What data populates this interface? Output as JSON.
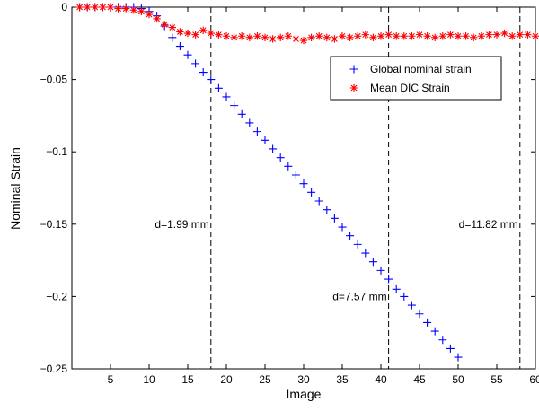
{
  "chart_data": {
    "type": "scatter",
    "title": "",
    "xlabel": "Image",
    "ylabel": "Nominal Strain",
    "xlim": [
      0,
      60
    ],
    "ylim": [
      -0.25,
      0
    ],
    "xticks": [
      5,
      10,
      15,
      20,
      25,
      30,
      35,
      40,
      45,
      50,
      55,
      60
    ],
    "xtick_labels": [
      "5",
      "10",
      "15",
      "20",
      "25",
      "30",
      "35",
      "40",
      "45",
      "50",
      "55",
      "60"
    ],
    "yticks": [
      0,
      -0.05,
      -0.1,
      -0.15,
      -0.2,
      -0.25
    ],
    "ytick_labels": [
      "0",
      "−0.05",
      "−0.1",
      "−0.15",
      "−0.2",
      "−0.25"
    ],
    "grid": false,
    "legend_position": "top-right",
    "series": [
      {
        "name": "Global nominal strain",
        "marker": "plus",
        "color": "#0000ff",
        "x": [
          1,
          2,
          3,
          4,
          5,
          6,
          7,
          8,
          9,
          10,
          11,
          12,
          13,
          14,
          15,
          16,
          17,
          18,
          19,
          20,
          21,
          22,
          23,
          24,
          25,
          26,
          27,
          28,
          29,
          30,
          31,
          32,
          33,
          34,
          35,
          36,
          37,
          38,
          39,
          40,
          41,
          42,
          43,
          44,
          45,
          46,
          47,
          48,
          49,
          50
        ],
        "y": [
          0,
          0,
          0,
          0,
          0,
          0,
          0,
          0,
          -0.001,
          -0.003,
          -0.006,
          -0.013,
          -0.021,
          -0.027,
          -0.033,
          -0.039,
          -0.045,
          -0.05,
          -0.056,
          -0.062,
          -0.068,
          -0.074,
          -0.08,
          -0.086,
          -0.092,
          -0.098,
          -0.104,
          -0.11,
          -0.116,
          -0.122,
          -0.128,
          -0.134,
          -0.14,
          -0.146,
          -0.152,
          -0.158,
          -0.164,
          -0.17,
          -0.176,
          -0.182,
          -0.188,
          -0.195,
          -0.2,
          -0.206,
          -0.212,
          -0.218,
          -0.224,
          -0.23,
          -0.236,
          -0.242
        ]
      },
      {
        "name": "Mean DIC Strain",
        "marker": "asterisk",
        "color": "#ff0000",
        "x": [
          1,
          2,
          3,
          4,
          5,
          6,
          7,
          8,
          9,
          10,
          11,
          12,
          13,
          14,
          15,
          16,
          17,
          18,
          19,
          20,
          21,
          22,
          23,
          24,
          25,
          26,
          27,
          28,
          29,
          30,
          31,
          32,
          33,
          34,
          35,
          36,
          37,
          38,
          39,
          40,
          41,
          42,
          43,
          44,
          45,
          46,
          47,
          48,
          49,
          50,
          51,
          52,
          53,
          54,
          55,
          56,
          57,
          58,
          59,
          60
        ],
        "y": [
          0,
          0,
          0,
          0,
          0,
          -0.001,
          -0.001,
          -0.002,
          -0.003,
          -0.005,
          -0.008,
          -0.012,
          -0.014,
          -0.017,
          -0.018,
          -0.019,
          -0.016,
          -0.018,
          -0.019,
          -0.02,
          -0.021,
          -0.02,
          -0.021,
          -0.02,
          -0.021,
          -0.022,
          -0.021,
          -0.02,
          -0.022,
          -0.023,
          -0.021,
          -0.02,
          -0.021,
          -0.022,
          -0.02,
          -0.021,
          -0.02,
          -0.019,
          -0.021,
          -0.02,
          -0.019,
          -0.02,
          -0.02,
          -0.02,
          -0.019,
          -0.02,
          -0.021,
          -0.02,
          -0.019,
          -0.02,
          -0.02,
          -0.021,
          -0.02,
          -0.019,
          -0.019,
          -0.018,
          -0.02,
          -0.019,
          -0.019,
          -0.02
        ]
      }
    ],
    "vlines": [
      {
        "x": 18,
        "label": "d=1.99 mm",
        "label_y": -0.15
      },
      {
        "x": 41,
        "label": "d=7.57 mm",
        "label_y": -0.2
      },
      {
        "x": 58,
        "label": "d=11.82 mm",
        "label_y": -0.15
      }
    ]
  }
}
